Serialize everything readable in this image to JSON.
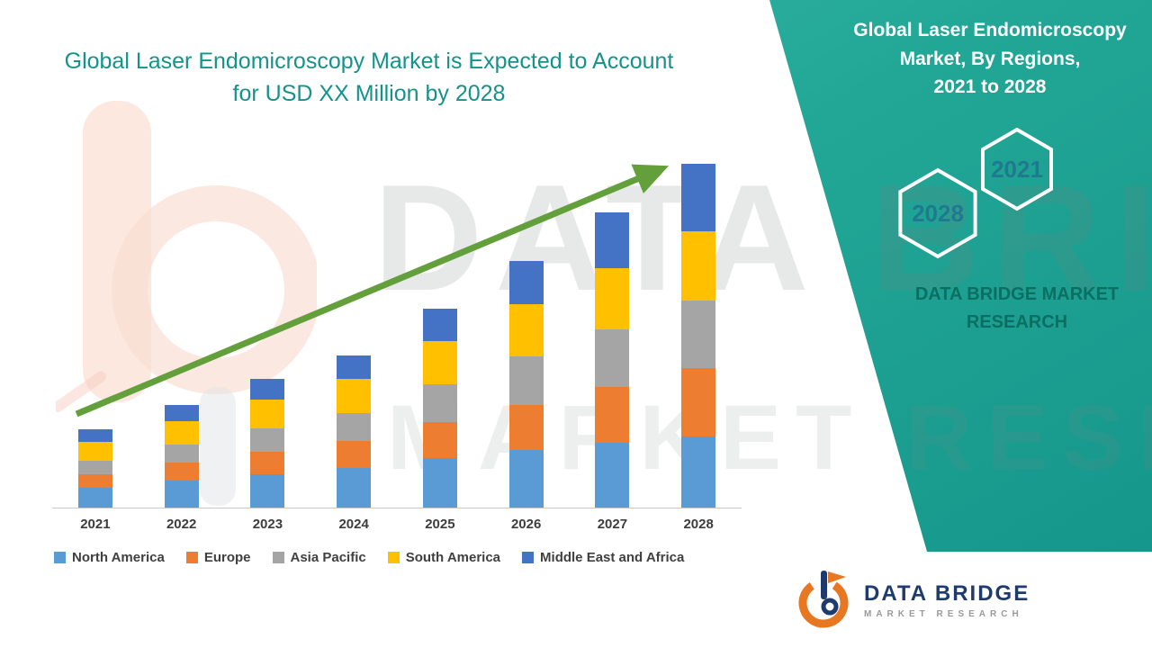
{
  "page": {
    "left_title": "Global Laser Endomicroscopy Market is Expected to Account\nfor USD XX Million by 2028",
    "watermark": {
      "line1": "DATA BRIDGE",
      "line2": "MARKET RESEARCH"
    },
    "right_panel": {
      "title": "Global Laser Endomicroscopy\nMarket, By Regions,\n2021 to 2028",
      "hexagon_labels": [
        "2028",
        "2021"
      ],
      "caption": "DATA BRIDGE MARKET\nRESEARCH"
    },
    "footer_logo": {
      "brand": "DATA BRIDGE",
      "tagline": "MARKET RESEARCH"
    }
  },
  "chart_data": {
    "type": "bar",
    "stacked": true,
    "title": "Global Laser Endomicroscopy Market is Expected to Account for USD XX Million by 2028",
    "categories": [
      "2021",
      "2022",
      "2023",
      "2024",
      "2025",
      "2026",
      "2027",
      "2028"
    ],
    "series": [
      {
        "name": "North America",
        "color": "#5B9BD5",
        "values": [
          22,
          30,
          37,
          44,
          55,
          64,
          72,
          79
        ]
      },
      {
        "name": "Europe",
        "color": "#ED7D31",
        "values": [
          15,
          20,
          25,
          30,
          40,
          50,
          62,
          76
        ]
      },
      {
        "name": "Asia Pacific",
        "color": "#A5A5A5",
        "values": [
          15,
          20,
          26,
          31,
          42,
          54,
          64,
          75
        ]
      },
      {
        "name": "South America",
        "color": "#FFC000",
        "values": [
          21,
          26,
          32,
          38,
          48,
          58,
          68,
          77
        ]
      },
      {
        "name": "Middle East and Africa",
        "color": "#4472C4",
        "values": [
          14,
          18,
          23,
          26,
          36,
          48,
          62,
          75
        ]
      }
    ],
    "totals": [
      87,
      114,
      143,
      169,
      221,
      274,
      328,
      382
    ],
    "xlabel": "",
    "ylabel": "",
    "value_axis_visible": false,
    "value_units": "USD Million (actual values masked as XX in source image; series values estimated from bar heights, relative units)",
    "legend_position": "bottom",
    "trend_arrow": {
      "present": true,
      "color": "#63a03c",
      "direction": "up-right"
    },
    "grid": false
  }
}
